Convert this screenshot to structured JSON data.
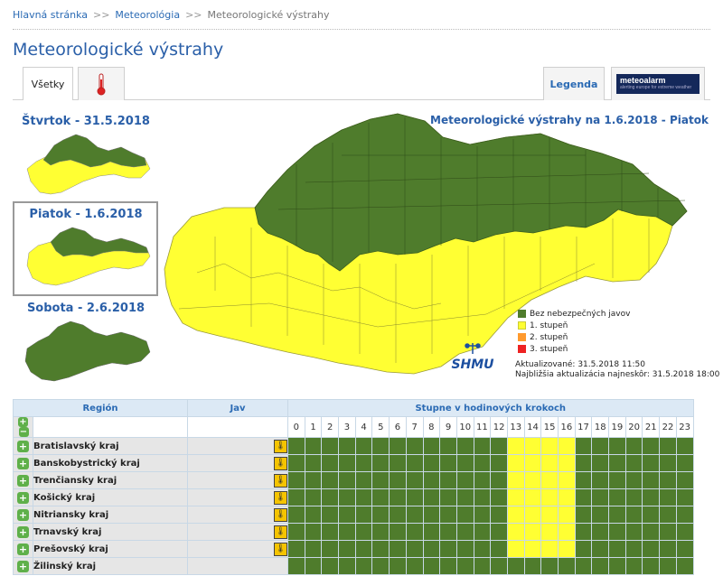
{
  "breadcrumb": {
    "home": "Hlavná stránka",
    "sep1": ">>",
    "section": "Meteorológia",
    "sep2": ">>",
    "current": "Meteorologické výstrahy"
  },
  "page_title": "Meteorologické výstrahy",
  "tabs": {
    "all": "Všetky",
    "thermo_icon": "thermometer-icon",
    "legend": "Legenda",
    "meteoalarm": "meteoalarm",
    "meteoalarm_sub": "alerting europe for extreme weather"
  },
  "days": [
    {
      "label": "Štvrtok - 31.5.2018"
    },
    {
      "label": "Piatok - 1.6.2018"
    },
    {
      "label": "Sobota - 2.6.2018"
    }
  ],
  "main_map_title": "Meteorologické výstrahy na 1.6.2018 - Piatok",
  "legend": {
    "items": [
      {
        "label": "Bez nebezpečných javov",
        "color": "#4f7c2c"
      },
      {
        "label": "1. stupeň",
        "color": "#ffff33"
      },
      {
        "label": "2. stupeň",
        "color": "#ff9a2e"
      },
      {
        "label": "3. stupeň",
        "color": "#ee2222"
      }
    ]
  },
  "updated": {
    "line1": "Aktualizované: 31.5.2018 11:50",
    "line2": "Najbližšia aktualizácia najneskôr: 31.5.2018 18:00"
  },
  "logo_text": "SHMU",
  "table": {
    "col_region": "Región",
    "col_jav": "Jav",
    "col_steps": "Stupne v hodinových krokoch",
    "hours": [
      "0",
      "1",
      "2",
      "3",
      "4",
      "5",
      "6",
      "7",
      "8",
      "9",
      "10",
      "11",
      "12",
      "13",
      "14",
      "15",
      "16",
      "17",
      "18",
      "19",
      "20",
      "21",
      "22",
      "23"
    ],
    "rows": [
      {
        "region": "Bratislavský kraj",
        "warn": true
      },
      {
        "region": "Banskobystrický kraj",
        "warn": true
      },
      {
        "region": "Trenčiansky kraj",
        "warn": true
      },
      {
        "region": "Košický kraj",
        "warn": true
      },
      {
        "region": "Nitriansky kraj",
        "warn": true
      },
      {
        "region": "Trnavský kraj",
        "warn": true
      },
      {
        "region": "Prešovský kraj",
        "warn": true
      },
      {
        "region": "Žilinský kraj",
        "warn": false
      }
    ],
    "warn_hours": [
      13,
      14,
      15,
      16
    ],
    "warn_rows": [
      0,
      1,
      2,
      3,
      4,
      5,
      6
    ]
  }
}
